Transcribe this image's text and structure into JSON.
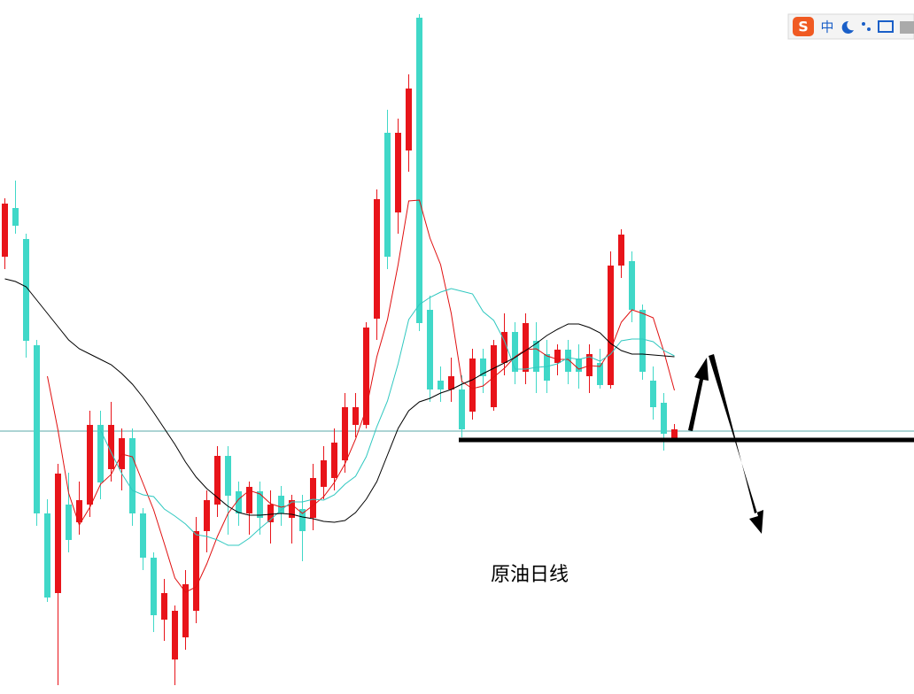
{
  "chart_data": {
    "type": "candlestick",
    "title": "原油日线",
    "ylim": [
      0,
      784
    ],
    "up_color": "#e8141a",
    "down_color": "#40d8c8",
    "open": [
      494,
      549,
      514,
      394,
      204,
      114,
      214,
      194,
      214,
      304,
      254,
      254,
      289,
      204,
      154,
      84,
      39,
      64,
      94,
      184,
      214,
      269,
      229,
      204,
      229,
      194,
      224,
      199,
      209,
      199,
      234,
      244,
      264,
      304,
      304,
      424,
      634,
      544,
      614,
      764,
      434,
      354,
      344,
      344,
      319,
      379,
      324,
      374,
      409,
      364,
      399,
      384,
      374,
      389,
      379,
      359,
      374,
      349,
      484,
      489,
      434,
      354,
      329,
      289
    ],
    "high": [
      560,
      580,
      520,
      400,
      220,
      260,
      250,
      240,
      320,
      320,
      330,
      300,
      300,
      210,
      160,
      130,
      100,
      140,
      200,
      230,
      280,
      280,
      240,
      240,
      240,
      230,
      235,
      225,
      225,
      260,
      280,
      300,
      340,
      340,
      420,
      570,
      660,
      650,
      700,
      768,
      450,
      370,
      380,
      360,
      390,
      390,
      400,
      430,
      420,
      430,
      420,
      400,
      395,
      400,
      395,
      395,
      390,
      500,
      525,
      500,
      440,
      370,
      340,
      305
    ],
    "low": [
      480,
      520,
      380,
      190,
      104,
      10,
      160,
      180,
      200,
      220,
      240,
      230,
      190,
      140,
      70,
      60,
      10,
      50,
      80,
      160,
      200,
      180,
      190,
      180,
      180,
      170,
      190,
      170,
      150,
      185,
      220,
      230,
      250,
      290,
      300,
      400,
      480,
      520,
      590,
      410,
      330,
      330,
      330,
      290,
      310,
      340,
      320,
      360,
      350,
      350,
      340,
      340,
      360,
      350,
      345,
      340,
      345,
      345,
      470,
      420,
      355,
      310,
      275,
      285
    ],
    "close": [
      554,
      529,
      399,
      204,
      109,
      249,
      174,
      219,
      304,
      239,
      304,
      289,
      204,
      154,
      89,
      114,
      94,
      124,
      184,
      219,
      269,
      224,
      204,
      234,
      199,
      214,
      204,
      219,
      184,
      244,
      264,
      284,
      324,
      324,
      414,
      559,
      494,
      634,
      684,
      419,
      344,
      344,
      359,
      299,
      379,
      359,
      394,
      409,
      364,
      419,
      364,
      354,
      389,
      364,
      364,
      384,
      349,
      484,
      519,
      434,
      364,
      324,
      294,
      299
    ],
    "lines": [
      {
        "color": "#e01010",
        "values": [
          null,
          null,
          null,
          null,
          359,
          298,
          227,
          191,
          211,
          237,
          248,
          271,
          268,
          238,
          208,
          170,
          131,
          115,
          121,
          147,
          178,
          204,
          220,
          230,
          226,
          215,
          211,
          214,
          204,
          213,
          223,
          239,
          260,
          288,
          322,
          381,
          423,
          485,
          557,
          558,
          515,
          485,
          430,
          353,
          345,
          348,
          358,
          368,
          381,
          389,
          390,
          382,
          378,
          378,
          367,
          371,
          370,
          389,
          420,
          434,
          430,
          425,
          387,
          343
        ]
      },
      {
        "color": "#30c8c0",
        "values": [
          null,
          null,
          null,
          null,
          null,
          null,
          null,
          null,
          null,
          298,
          273,
          249,
          230,
          225,
          223,
          209,
          201,
          192,
          180,
          178,
          174,
          168,
          168,
          176,
          187,
          197,
          208,
          217,
          217,
          220,
          219,
          225,
          237,
          246,
          268,
          302,
          331,
          373,
          423,
          440,
          448,
          454,
          458,
          455,
          452,
          432,
          422,
          399,
          367,
          367,
          369,
          370,
          373,
          380,
          378,
          381,
          376,
          384,
          399,
          401,
          401,
          398,
          388,
          382
        ]
      },
      {
        "color": "#000000",
        "values": [
          469,
          466,
          460,
          445,
          430,
          415,
          400,
          390,
          384,
          378,
          372,
          362,
          350,
          335,
          318,
          300,
          282,
          262,
          245,
          232,
          222,
          212,
          205,
          202,
          202,
          203,
          204,
          203,
          200,
          198,
          195,
          194,
          196,
          205,
          220,
          240,
          270,
          300,
          320,
          330,
          334,
          340,
          344,
          350,
          355,
          362,
          368,
          374,
          380,
          388,
          396,
          405,
          412,
          418,
          418,
          414,
          408,
          396,
          388,
          384,
          384,
          383,
          382,
          381
        ]
      }
    ],
    "price_line": 297,
    "support_level": 287
  },
  "toolbar": {
    "label": "中"
  }
}
